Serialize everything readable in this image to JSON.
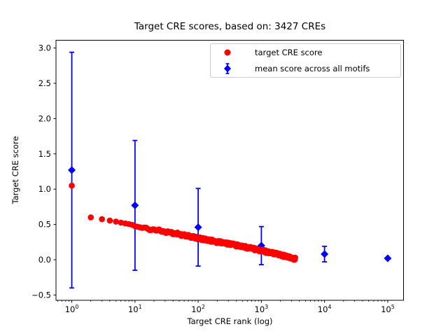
{
  "window": {
    "background": "#ffffff"
  },
  "chart_data": {
    "type": "scatter",
    "title": "Target CRE scores, based on: 3427 CREs",
    "xlabel": "Target CRE rank (log)",
    "ylabel": "Target CRE score",
    "x_scale": "log",
    "xlim_log10": [
      -0.25,
      5.25
    ],
    "ylim": [
      -0.575,
      3.11
    ],
    "x_tick_exponents": [
      0,
      1,
      2,
      3,
      4,
      5
    ],
    "y_ticks": [
      3.0,
      2.5,
      2.0,
      1.5,
      1.0,
      0.5,
      0.0,
      -0.5
    ],
    "grid": false,
    "colors": {
      "target_series": "#ff0000",
      "mean_series": "#0000ff",
      "axis": "#000000",
      "legend_border": "#cccccc"
    },
    "legend": {
      "position": "upper right",
      "entries": [
        {
          "label": "target CRE score",
          "marker": "circle",
          "color": "#ff0000"
        },
        {
          "label": "mean score across all motifs",
          "marker": "diamond-errorbar",
          "color": "#0000ff"
        }
      ]
    },
    "series": [
      {
        "name": "target CRE score",
        "type": "scatter",
        "marker": "circle",
        "color": "#ff0000",
        "n_points": 3427,
        "anchors_rank_score": [
          [
            1,
            1.05
          ],
          [
            2,
            0.6
          ],
          [
            3,
            0.575
          ],
          [
            4,
            0.555
          ],
          [
            5,
            0.54
          ],
          [
            6,
            0.525
          ],
          [
            7,
            0.515
          ],
          [
            8,
            0.505
          ],
          [
            9,
            0.495
          ],
          [
            10,
            0.475
          ],
          [
            12,
            0.46
          ],
          [
            15,
            0.445
          ],
          [
            20,
            0.425
          ],
          [
            30,
            0.397
          ],
          [
            40,
            0.377
          ],
          [
            50,
            0.362
          ],
          [
            70,
            0.335
          ],
          [
            100,
            0.305
          ],
          [
            150,
            0.275
          ],
          [
            200,
            0.253
          ],
          [
            300,
            0.226
          ],
          [
            500,
            0.188
          ],
          [
            700,
            0.161
          ],
          [
            1000,
            0.128
          ],
          [
            1500,
            0.095
          ],
          [
            2000,
            0.068
          ],
          [
            2500,
            0.047
          ],
          [
            3000,
            0.028
          ],
          [
            3427,
            0.012
          ]
        ]
      },
      {
        "name": "mean score across all motifs",
        "type": "errorbar",
        "marker": "diamond",
        "color": "#0000ff",
        "x": [
          1,
          10,
          100,
          1000,
          10000,
          100000
        ],
        "mean": [
          1.27,
          0.77,
          0.46,
          0.2,
          0.08,
          0.02
        ],
        "err": [
          1.67,
          0.92,
          0.55,
          0.27,
          0.11,
          0.0
        ]
      }
    ]
  }
}
